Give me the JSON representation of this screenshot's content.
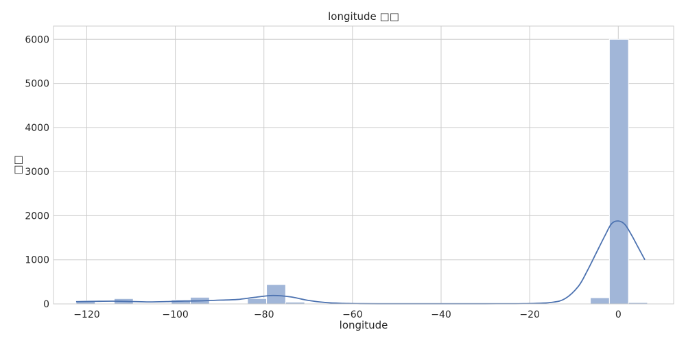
{
  "chart_data": {
    "type": "bar",
    "title": "longitude □□",
    "xlabel": "longitude",
    "ylabel": "□□",
    "xlim": [
      -127.5,
      12.5
    ],
    "ylim": [
      0,
      6300
    ],
    "xticks": [
      -120,
      -100,
      -80,
      -60,
      -40,
      -20,
      0
    ],
    "xtick_labels": [
      "−120",
      "−100",
      "−80",
      "−60",
      "−40",
      "−20",
      "0"
    ],
    "yticks": [
      0,
      1000,
      2000,
      3000,
      4000,
      5000,
      6000
    ],
    "ytick_labels": [
      "0",
      "1000",
      "2000",
      "3000",
      "4000",
      "5000",
      "6000"
    ],
    "grid": true,
    "bars": {
      "bin_width": 4.3,
      "bin_start": -122.4,
      "values": [
        70,
        0,
        120,
        0,
        0,
        90,
        150,
        0,
        0,
        120,
        440,
        40,
        0,
        0,
        0,
        0,
        0,
        0,
        0,
        0,
        0,
        0,
        0,
        0,
        0,
        0,
        0,
        140,
        6000,
        30
      ]
    },
    "kde": {
      "x": [
        -122.4,
        -118,
        -114,
        -110,
        -106,
        -102,
        -98,
        -94,
        -90,
        -86,
        -82,
        -78,
        -74,
        -70,
        -66,
        -62,
        -58,
        -54,
        -50,
        -40,
        -30,
        -20,
        -15,
        -12,
        -9,
        -7,
        -5,
        -3,
        -1.5,
        0,
        1.5,
        3,
        4.5,
        6
      ],
      "y": [
        50,
        58,
        62,
        55,
        45,
        52,
        65,
        70,
        85,
        100,
        150,
        190,
        160,
        80,
        30,
        12,
        5,
        3,
        3,
        3,
        3,
        8,
        35,
        120,
        400,
        750,
        1150,
        1550,
        1820,
        1880,
        1800,
        1560,
        1280,
        1000
      ]
    },
    "colors": {
      "bar_fill": "#a1b6d8",
      "bar_stroke": "#ffffff",
      "kde_line": "#4c72b0",
      "grid": "#cccccc",
      "axes_frame": "#cccccc"
    }
  }
}
